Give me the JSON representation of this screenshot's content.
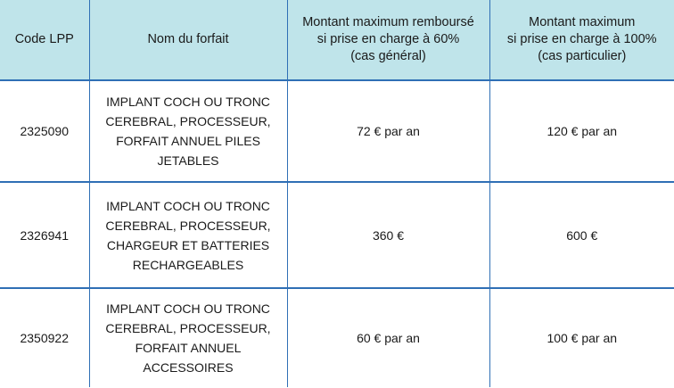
{
  "table": {
    "headers": [
      {
        "lines": [
          "Code LPP"
        ]
      },
      {
        "lines": [
          "Nom du forfait"
        ]
      },
      {
        "lines": [
          "Montant maximum remboursé",
          "si prise en charge à 60%",
          "(cas général)"
        ]
      },
      {
        "lines": [
          "Montant maximum",
          "si prise en charge à 100%",
          "(cas particulier)"
        ]
      }
    ],
    "rows": [
      {
        "code": "2325090",
        "name_lines": [
          "IMPLANT COCH OU TRONC",
          "CEREBRAL, PROCESSEUR,",
          "FORFAIT ANNUEL PILES",
          "JETABLES"
        ],
        "amount_60": "72 € par an",
        "amount_100": "120 € par an"
      },
      {
        "code": "2326941",
        "name_lines": [
          "IMPLANT COCH OU TRONC",
          "CEREBRAL, PROCESSEUR,",
          "CHARGEUR ET BATTERIES",
          "RECHARGEABLES"
        ],
        "amount_60": "360 €",
        "amount_100": "600 €"
      },
      {
        "code": "2350922",
        "name_lines": [
          "IMPLANT COCH OU TRONC",
          "CEREBRAL, PROCESSEUR,",
          "FORFAIT ANNUEL",
          "ACCESSOIRES"
        ],
        "amount_60": "60 € par an",
        "amount_100": "100 € par an"
      }
    ]
  },
  "colors": {
    "header_bg": "#bfe4ea",
    "border": "#2f6fb5",
    "text": "#1a1a1a"
  }
}
